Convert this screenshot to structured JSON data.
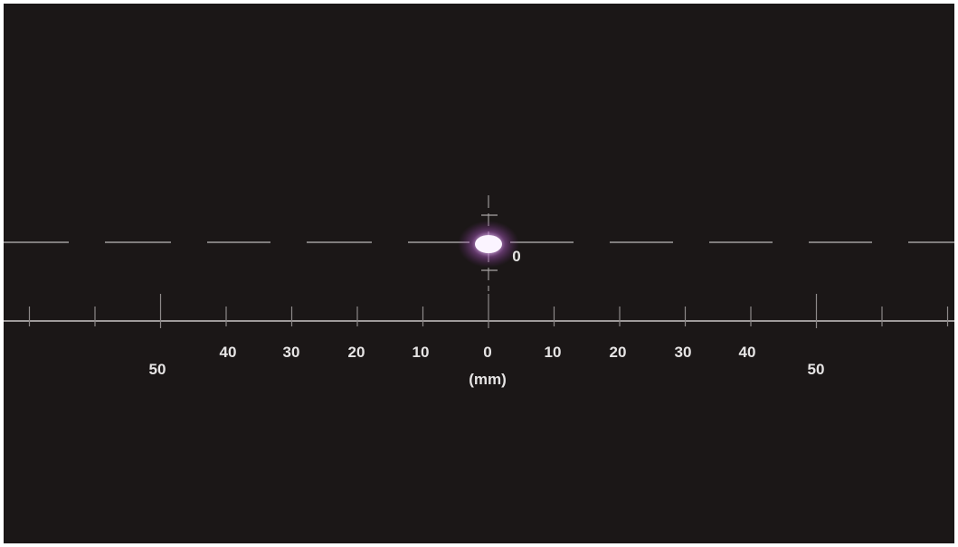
{
  "scale": {
    "left_labels": [
      "50",
      "40",
      "30",
      "20",
      "10"
    ],
    "center_label": "0",
    "right_labels": [
      "10",
      "20",
      "30",
      "40",
      "50"
    ],
    "unit_label": "(mm)",
    "spot_label": "0"
  },
  "laser_spot": {
    "color": "#f2e6ff",
    "glow_color": "#c06bd0",
    "position_mm": 0
  },
  "colors": {
    "background": "#1b1717",
    "lines": "#bdbaba",
    "text": "#e6e4e4"
  }
}
